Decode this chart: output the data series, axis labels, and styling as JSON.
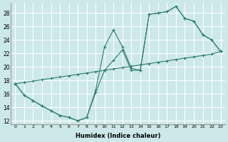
{
  "xlabel": "Humidex (Indice chaleur)",
  "bg_color": "#cce8e8",
  "grid_color": "#ffffff",
  "line_color": "#2e7d6e",
  "line1_x": [
    0,
    1,
    2,
    3,
    4,
    5,
    6,
    7,
    8,
    9,
    10,
    11,
    12,
    13,
    14,
    15,
    16,
    17,
    18,
    19,
    20,
    21,
    22,
    23
  ],
  "line1_y": [
    17.5,
    15.8,
    15.0,
    14.2,
    13.5,
    12.8,
    12.5,
    12.0,
    12.5,
    16.2,
    19.5,
    21.0,
    22.5,
    19.5,
    19.5,
    27.8,
    28.0,
    28.2,
    29.0,
    27.2,
    26.8,
    24.8,
    24.0,
    22.3
  ],
  "line2_x": [
    0,
    1,
    2,
    3,
    4,
    5,
    6,
    7,
    8,
    9,
    10,
    11,
    12,
    13,
    14,
    15,
    16,
    17,
    18,
    19,
    20,
    21,
    22,
    23
  ],
  "line2_y": [
    17.5,
    15.8,
    15.0,
    14.2,
    13.5,
    12.8,
    12.5,
    12.0,
    12.5,
    16.5,
    23.0,
    25.5,
    23.0,
    19.8,
    19.5,
    27.8,
    28.0,
    28.2,
    29.0,
    27.2,
    26.8,
    24.8,
    24.0,
    22.3
  ],
  "line3_x": [
    0,
    1,
    2,
    3,
    4,
    5,
    6,
    7,
    8,
    9,
    10,
    11,
    12,
    13,
    14,
    15,
    16,
    17,
    18,
    19,
    20,
    21,
    22,
    23
  ],
  "line3_y": [
    17.5,
    17.7,
    17.9,
    18.1,
    18.3,
    18.5,
    18.7,
    18.9,
    19.1,
    19.3,
    19.5,
    19.7,
    19.9,
    20.1,
    20.3,
    20.5,
    20.7,
    20.9,
    21.1,
    21.3,
    21.5,
    21.7,
    21.9,
    22.3
  ],
  "xlim": [
    -0.5,
    23.5
  ],
  "ylim": [
    11.5,
    29.5
  ],
  "xticks": [
    0,
    1,
    2,
    3,
    4,
    5,
    6,
    7,
    8,
    9,
    10,
    11,
    12,
    13,
    14,
    15,
    16,
    17,
    18,
    19,
    20,
    21,
    22,
    23
  ],
  "yticks": [
    12,
    14,
    16,
    18,
    20,
    22,
    24,
    26,
    28
  ]
}
